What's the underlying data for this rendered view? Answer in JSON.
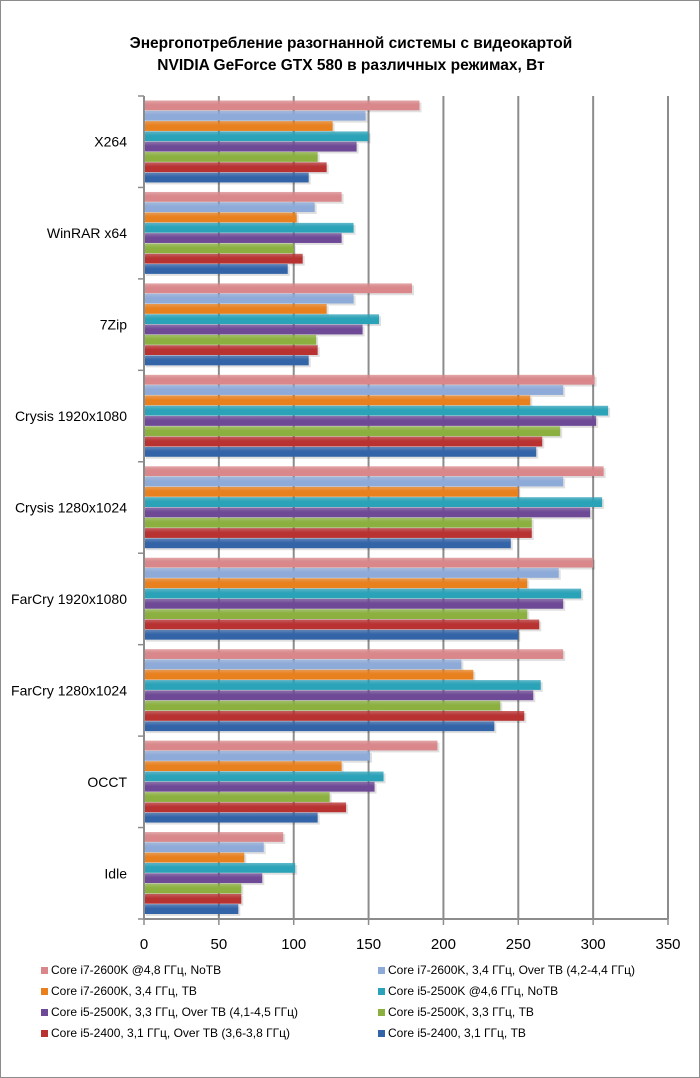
{
  "chart_data": {
    "type": "bar",
    "orientation": "horizontal",
    "title": [
      "Энергопотребление разогнанной системы с видеокартой",
      "NVIDIA GeForce GTX 580 в различных режимах, Вт"
    ],
    "categories": [
      "X264",
      "WinRAR x64",
      "7Zip",
      "Crysis 1920x1080",
      "Crysis 1280x1024",
      "FarCry 1920x1080",
      "FarCry 1280x1024",
      "OCCT",
      "Idle"
    ],
    "xlim": [
      0,
      350
    ],
    "xticks": [
      "0",
      "50",
      "100",
      "150",
      "200",
      "250",
      "300",
      "350"
    ],
    "grid": true,
    "legend_position": "bottom",
    "series": [
      {
        "name": "Core i7-2600K @4,8 ГГц, NoTB",
        "color": "#d9878a",
        "values": [
          184,
          132,
          179,
          301,
          307,
          300,
          280,
          196,
          93
        ]
      },
      {
        "name": "Core i7-2600K, 3,4 ГГц, Over TB (4,2-4,4 ГГц)",
        "color": "#8eaad8",
        "values": [
          148,
          114,
          140,
          280,
          280,
          277,
          212,
          151,
          80
        ]
      },
      {
        "name": "Core i7-2600K, 3,4 ГГц, TB",
        "color": "#e8801e",
        "values": [
          126,
          102,
          122,
          258,
          250,
          256,
          220,
          132,
          67
        ]
      },
      {
        "name": "Core i5-2500K @4,6 ГГц, NoTB",
        "color": "#2aa2b8",
        "values": [
          150,
          140,
          157,
          310,
          306,
          292,
          265,
          160,
          101
        ]
      },
      {
        "name": "Core i5-2500K, 3,3 ГГц, Over TB (4,1-4,5 ГГц)",
        "color": "#6e4a96",
        "values": [
          142,
          132,
          146,
          302,
          298,
          280,
          260,
          154,
          79
        ]
      },
      {
        "name": "Core i5-2500K, 3,3 ГГц, TB",
        "color": "#8bb040",
        "values": [
          116,
          100,
          115,
          278,
          259,
          256,
          238,
          124,
          65
        ]
      },
      {
        "name": "Core i5-2400, 3,1 ГГц, Over TB (3,6-3,8 ГГц)",
        "color": "#b83232",
        "values": [
          122,
          106,
          116,
          266,
          259,
          264,
          254,
          135,
          65
        ]
      },
      {
        "name": "Core i5-2400, 3,1 ГГц, TB",
        "color": "#3464a8",
        "values": [
          110,
          96,
          110,
          262,
          245,
          250,
          234,
          116,
          63
        ]
      }
    ]
  }
}
